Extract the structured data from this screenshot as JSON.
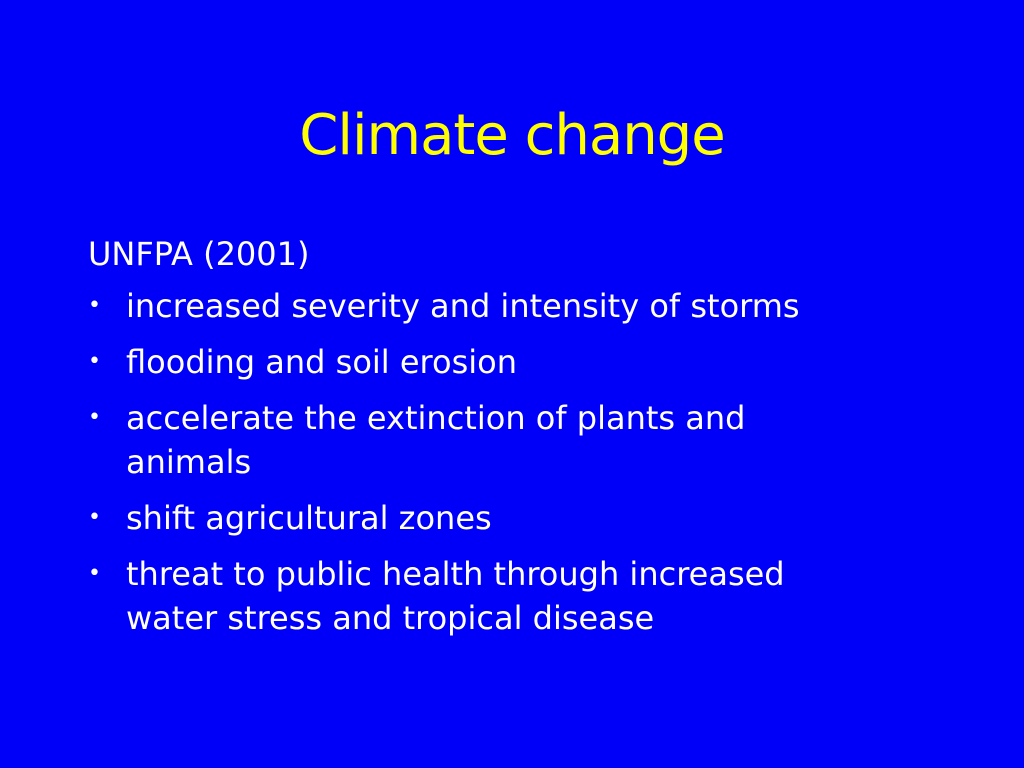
{
  "slide": {
    "title": "Climate change",
    "intro": "UNFPA (2001)",
    "bullet_symbol": "•",
    "bullets": [
      "increased severity and intensity of storms",
      "flooding and soil erosion",
      "accelerate the extinction of plants and animals",
      "shift agricultural zones",
      "threat to public health through increased water stress and tropical disease"
    ]
  },
  "colors": {
    "background": "#0000f8",
    "title": "#ffff00",
    "body_text": "#ffffff"
  }
}
